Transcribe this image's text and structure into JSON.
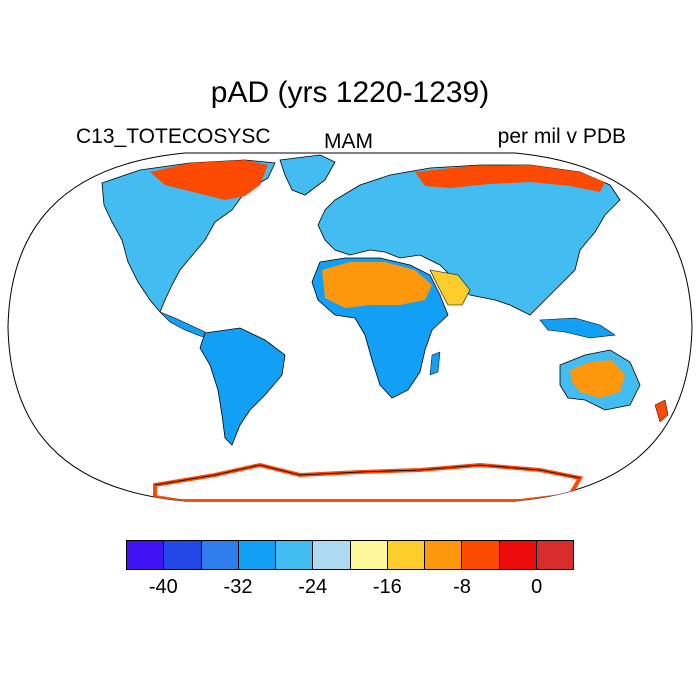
{
  "title": "pAD (yrs 1220-1239)",
  "left_label": "C13_TOTECOSYSC",
  "center_label": "MAM",
  "right_label": "per mil v PDB",
  "colorbar": {
    "colors": [
      "#4013f5",
      "#2447e8",
      "#2f7ced",
      "#12a0f6",
      "#43bdf1",
      "#acdaf1",
      "#fef89a",
      "#fdcd2c",
      "#fd970c",
      "#fc4a02",
      "#ed0b0b",
      "#d82b2b"
    ],
    "tick_labels": [
      "-40",
      "-32",
      "-24",
      "-16",
      "-8",
      "0"
    ]
  }
}
